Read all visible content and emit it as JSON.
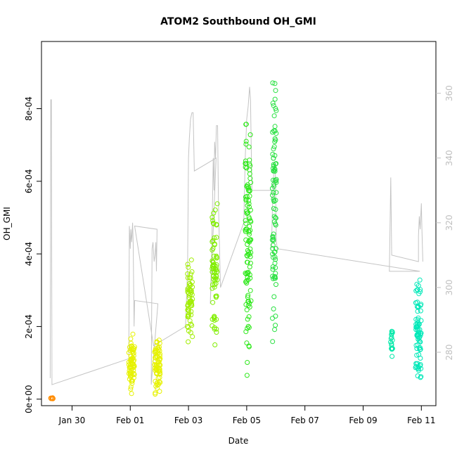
{
  "chart_data": {
    "type": "scatter",
    "title": "ATOM2 Southbound OH_GMI",
    "xlabel": "Date",
    "ylabel": "OH_GMI",
    "x_ticks": [
      {
        "day": 2,
        "label": "Jan 30"
      },
      {
        "day": 4,
        "label": "Feb 01"
      },
      {
        "day": 6,
        "label": "Feb 03"
      },
      {
        "day": 8,
        "label": "Feb 05"
      },
      {
        "day": 10,
        "label": "Feb 07"
      },
      {
        "day": 12,
        "label": "Feb 09"
      },
      {
        "day": 14,
        "label": "Feb 11"
      }
    ],
    "xlim_days": [
      0.95,
      14.5
    ],
    "y_ticks": [
      {
        "value": 0,
        "label": "0e+00"
      },
      {
        "value": 0.0002,
        "label": "2e-04"
      },
      {
        "value": 0.0004,
        "label": "4e-04"
      },
      {
        "value": 0.0006,
        "label": "6e-04"
      },
      {
        "value": 0.0008,
        "label": "8e-04"
      }
    ],
    "ylim": [
      -1.8e-05,
      0.000985
    ],
    "y2_ticks": [
      {
        "value": 280,
        "label": "280"
      },
      {
        "value": 300,
        "label": "300"
      },
      {
        "value": 320,
        "label": "320"
      },
      {
        "value": 340,
        "label": "340"
      },
      {
        "value": 360,
        "label": "360"
      }
    ],
    "y2lim": [
      263.5,
      376
    ],
    "secondary_line_color": "#c4c4c4",
    "series": [
      {
        "color": "#ff8c00",
        "day": 1.3,
        "spread": 0.05,
        "n": 10,
        "ymin": 0.0,
        "ymax": 4e-06
      },
      {
        "color": "#e6f200",
        "day": 4.05,
        "spread": 0.1,
        "n": 70,
        "ymin": 5e-06,
        "ymax": 0.00019
      },
      {
        "color": "#e6f200",
        "day": 4.93,
        "spread": 0.1,
        "n": 70,
        "ymin": 5e-06,
        "ymax": 0.000185
      },
      {
        "color": "#a0ee00",
        "day": 6.05,
        "spread": 0.09,
        "n": 60,
        "ymin": 0.00014,
        "ymax": 0.00041
      },
      {
        "color": "#80ee00",
        "day": 6.9,
        "spread": 0.09,
        "n": 70,
        "ymin": 0.00011,
        "ymax": 0.00057
      },
      {
        "color": "#2ee81a",
        "day": 8.05,
        "spread": 0.1,
        "n": 110,
        "ymin": 2e-05,
        "ymax": 0.000845
      },
      {
        "color": "#28e040",
        "day": 8.95,
        "spread": 0.07,
        "n": 90,
        "ymin": 0.000145,
        "ymax": 0.000935
      },
      {
        "color": "#00e8a8",
        "day": 12.98,
        "spread": 0.04,
        "n": 16,
        "ymin": 0.000115,
        "ymax": 0.000205
      },
      {
        "color": "#00e8b8",
        "day": 13.9,
        "spread": 0.1,
        "n": 80,
        "ymin": 2.5e-05,
        "ymax": 0.00034
      }
    ],
    "altitude": [
      [
        1.25,
        272
      ],
      [
        1.27,
        358
      ],
      [
        1.29,
        358
      ],
      [
        1.31,
        270
      ],
      [
        3.95,
        278
      ],
      [
        3.97,
        319
      ],
      [
        4.0,
        312
      ],
      [
        4.02,
        318
      ],
      [
        4.05,
        314
      ],
      [
        4.08,
        320
      ],
      [
        4.1,
        314
      ],
      [
        4.13,
        288
      ],
      [
        4.15,
        296
      ],
      [
        4.95,
        295
      ],
      [
        4.72,
        270
      ],
      [
        4.75,
        312
      ],
      [
        4.78,
        314
      ],
      [
        4.82,
        308
      ],
      [
        4.85,
        310
      ],
      [
        4.88,
        314
      ],
      [
        4.9,
        305
      ],
      [
        4.92,
        318
      ],
      [
        4.15,
        319
      ],
      [
        4.8,
        282
      ],
      [
        5.9,
        288
      ],
      [
        5.97,
        306
      ],
      [
        6.0,
        340
      ],
      [
        6.03,
        346
      ],
      [
        6.07,
        352
      ],
      [
        6.12,
        354
      ],
      [
        6.16,
        354
      ],
      [
        6.2,
        336
      ],
      [
        6.95,
        340
      ],
      [
        6.75,
        295
      ],
      [
        6.8,
        312
      ],
      [
        6.85,
        340
      ],
      [
        6.88,
        330
      ],
      [
        6.9,
        345
      ],
      [
        6.93,
        340
      ],
      [
        6.96,
        350
      ],
      [
        7.0,
        350
      ],
      [
        7.03,
        326
      ],
      [
        7.1,
        300
      ],
      [
        7.9,
        320
      ],
      [
        7.95,
        340
      ],
      [
        8.0,
        352
      ],
      [
        8.05,
        356
      ],
      [
        8.1,
        362
      ],
      [
        8.13,
        358
      ],
      [
        8.18,
        330
      ],
      [
        8.9,
        330
      ],
      [
        8.85,
        312
      ],
      [
        8.9,
        330
      ],
      [
        8.95,
        338
      ],
      [
        8.98,
        336
      ],
      [
        9.02,
        314
      ],
      [
        9.05,
        312
      ],
      [
        13.95,
        305
      ],
      [
        12.9,
        305
      ],
      [
        12.95,
        334
      ],
      [
        12.98,
        310
      ],
      [
        13.9,
        308
      ],
      [
        13.9,
        316
      ],
      [
        13.93,
        322
      ],
      [
        13.96,
        318
      ],
      [
        14.0,
        326
      ],
      [
        14.02,
        318
      ],
      [
        14.05,
        308
      ]
    ]
  }
}
